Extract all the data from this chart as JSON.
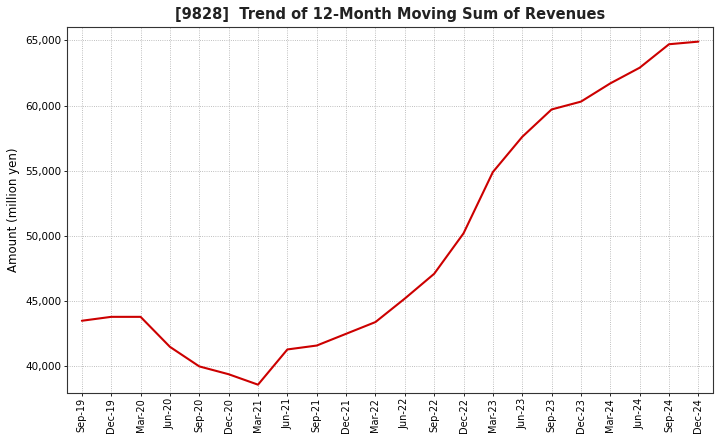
{
  "title": "[9828]  Trend of 12-Month Moving Sum of Revenues",
  "ylabel": "Amount (million yen)",
  "line_color": "#cc0000",
  "bg_color": "#ffffff",
  "plot_bg_color": "#ffffff",
  "ylim": [
    38000,
    66000
  ],
  "yticks": [
    40000,
    45000,
    50000,
    55000,
    60000,
    65000
  ],
  "x_labels": [
    "Sep-19",
    "Dec-19",
    "Mar-20",
    "Jun-20",
    "Sep-20",
    "Dec-20",
    "Mar-21",
    "Jun-21",
    "Sep-21",
    "Dec-21",
    "Mar-22",
    "Jun-22",
    "Sep-22",
    "Dec-22",
    "Mar-23",
    "Jun-23",
    "Sep-23",
    "Dec-23",
    "Mar-24",
    "Jun-24",
    "Sep-24",
    "Dec-24"
  ],
  "values": [
    43500,
    43800,
    43800,
    41500,
    40000,
    39400,
    38600,
    41300,
    41600,
    42500,
    43400,
    45200,
    47100,
    50200,
    54900,
    57600,
    59700,
    60300,
    61700,
    62900,
    64700,
    64900
  ]
}
